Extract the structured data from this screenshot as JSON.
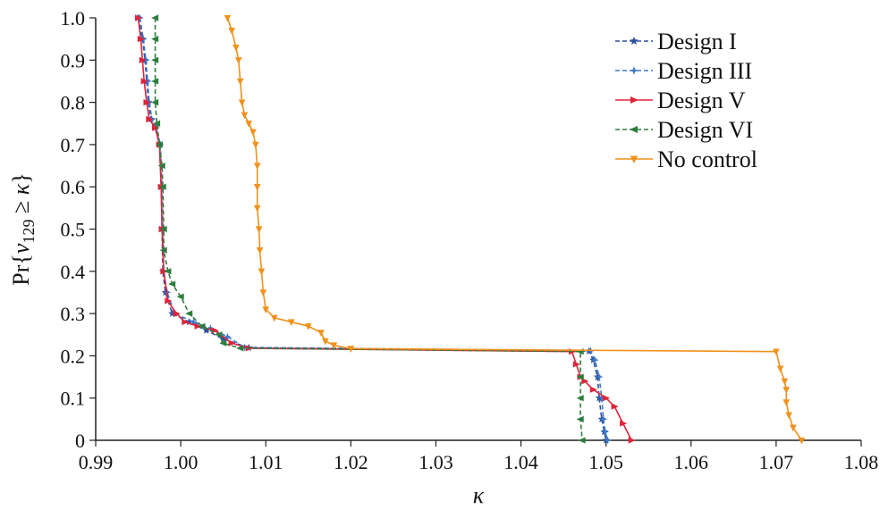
{
  "chart_data": {
    "type": "line",
    "xlabel": "κ",
    "ylabel": "Pr{v129 ≥ κ}",
    "ylabel_parts": {
      "pre": "Pr{",
      "var": "v",
      "sub": "129",
      "op": " ≥ ",
      "kappa": "κ",
      "post": "}"
    },
    "xlim": [
      0.99,
      1.08
    ],
    "ylim": [
      0,
      1.0
    ],
    "x_ticks": [
      0.99,
      1.0,
      1.01,
      1.02,
      1.03,
      1.04,
      1.05,
      1.06,
      1.07,
      1.08
    ],
    "x_tick_labels": [
      "0.99",
      "1.00",
      "1.01",
      "1.02",
      "1.03",
      "1.04",
      "1.05",
      "1.06",
      "1.07",
      "1.08"
    ],
    "y_ticks": [
      0,
      0.1,
      0.2,
      0.3,
      0.4,
      0.5,
      0.6,
      0.7,
      0.8,
      0.9,
      1.0
    ],
    "y_tick_labels": [
      "0",
      "0.1",
      "0.2",
      "0.3",
      "0.4",
      "0.5",
      "0.6",
      "0.7",
      "0.8",
      "0.9",
      "1.0"
    ],
    "grid": false,
    "legend_position": "top-right",
    "series": [
      {
        "name": "Design I",
        "color": "#2f4f9e",
        "marker": "star",
        "dashed": true,
        "points": [
          [
            0.995,
            1.0
          ],
          [
            0.9955,
            0.95
          ],
          [
            0.9958,
            0.9
          ],
          [
            0.996,
            0.85
          ],
          [
            0.9962,
            0.8
          ],
          [
            0.9965,
            0.76
          ],
          [
            0.997,
            0.74
          ],
          [
            0.9975,
            0.7
          ],
          [
            0.9977,
            0.6
          ],
          [
            0.9978,
            0.5
          ],
          [
            0.9979,
            0.4
          ],
          [
            0.9982,
            0.35
          ],
          [
            0.999,
            0.3
          ],
          [
            1.001,
            0.28
          ],
          [
            1.003,
            0.26
          ],
          [
            1.005,
            0.24
          ],
          [
            1.008,
            0.219
          ],
          [
            1.048,
            0.211
          ],
          [
            1.0485,
            0.19
          ],
          [
            1.049,
            0.15
          ],
          [
            1.0492,
            0.1
          ],
          [
            1.0495,
            0.05
          ],
          [
            1.0498,
            0.02
          ],
          [
            1.05,
            0.0
          ]
        ]
      },
      {
        "name": "Design III",
        "color": "#3a78c9",
        "marker": "diamond",
        "dashed": true,
        "points": [
          [
            0.9952,
            1.0
          ],
          [
            0.9956,
            0.95
          ],
          [
            0.9959,
            0.9
          ],
          [
            0.9961,
            0.85
          ],
          [
            0.9963,
            0.8
          ],
          [
            0.9966,
            0.76
          ],
          [
            0.9971,
            0.74
          ],
          [
            0.9976,
            0.7
          ],
          [
            0.9978,
            0.6
          ],
          [
            0.9979,
            0.5
          ],
          [
            0.998,
            0.4
          ],
          [
            0.9984,
            0.35
          ],
          [
            0.9993,
            0.3
          ],
          [
            1.0015,
            0.28
          ],
          [
            1.0035,
            0.265
          ],
          [
            1.0055,
            0.245
          ],
          [
            1.0075,
            0.22
          ],
          [
            1.0482,
            0.212
          ],
          [
            1.0487,
            0.19
          ],
          [
            1.0492,
            0.15
          ],
          [
            1.0495,
            0.1
          ],
          [
            1.0497,
            0.05
          ],
          [
            1.0499,
            0.02
          ],
          [
            1.0502,
            0.0
          ]
        ]
      },
      {
        "name": "Design V",
        "color": "#e0243a",
        "marker": "triangle-right",
        "dashed": false,
        "points": [
          [
            0.995,
            1.0
          ],
          [
            0.9953,
            0.95
          ],
          [
            0.9955,
            0.9
          ],
          [
            0.9957,
            0.85
          ],
          [
            0.996,
            0.8
          ],
          [
            0.9963,
            0.76
          ],
          [
            0.997,
            0.74
          ],
          [
            0.9975,
            0.7
          ],
          [
            0.9977,
            0.6
          ],
          [
            0.9978,
            0.5
          ],
          [
            0.998,
            0.4
          ],
          [
            0.9985,
            0.33
          ],
          [
            0.9995,
            0.3
          ],
          [
            1.0005,
            0.28
          ],
          [
            1.002,
            0.27
          ],
          [
            1.004,
            0.26
          ],
          [
            1.006,
            0.23
          ],
          [
            1.008,
            0.218
          ],
          [
            1.046,
            0.21
          ],
          [
            1.0465,
            0.18
          ],
          [
            1.047,
            0.15
          ],
          [
            1.0475,
            0.14
          ],
          [
            1.0485,
            0.12
          ],
          [
            1.05,
            0.1
          ],
          [
            1.051,
            0.08
          ],
          [
            1.052,
            0.04
          ],
          [
            1.053,
            0.0
          ]
        ]
      },
      {
        "name": "Design VI",
        "color": "#2e7d3e",
        "marker": "triangle-left",
        "dashed": true,
        "points": [
          [
            0.997,
            1.0
          ],
          [
            0.997,
            0.95
          ],
          [
            0.997,
            0.9
          ],
          [
            0.997,
            0.85
          ],
          [
            0.997,
            0.8
          ],
          [
            0.9972,
            0.75
          ],
          [
            0.9975,
            0.7
          ],
          [
            0.9978,
            0.65
          ],
          [
            0.9979,
            0.6
          ],
          [
            0.998,
            0.5
          ],
          [
            0.998,
            0.45
          ],
          [
            0.9985,
            0.4
          ],
          [
            0.999,
            0.37
          ],
          [
            1.0,
            0.34
          ],
          [
            1.001,
            0.3
          ],
          [
            1.0025,
            0.27
          ],
          [
            1.0045,
            0.25
          ],
          [
            1.005,
            0.23
          ],
          [
            1.007,
            0.218
          ],
          [
            1.047,
            0.21
          ],
          [
            1.047,
            0.15
          ],
          [
            1.047,
            0.1
          ],
          [
            1.047,
            0.05
          ],
          [
            1.0472,
            0.0
          ]
        ]
      },
      {
        "name": "No control",
        "color": "#f0921c",
        "marker": "triangle-down",
        "dashed": false,
        "points": [
          [
            1.0055,
            1.0
          ],
          [
            1.006,
            0.97
          ],
          [
            1.0065,
            0.93
          ],
          [
            1.0068,
            0.9
          ],
          [
            1.007,
            0.85
          ],
          [
            1.0072,
            0.8
          ],
          [
            1.0075,
            0.77
          ],
          [
            1.008,
            0.75
          ],
          [
            1.0085,
            0.73
          ],
          [
            1.0088,
            0.7
          ],
          [
            1.009,
            0.65
          ],
          [
            1.009,
            0.6
          ],
          [
            1.009,
            0.55
          ],
          [
            1.0092,
            0.5
          ],
          [
            1.0093,
            0.45
          ],
          [
            1.0095,
            0.4
          ],
          [
            1.0097,
            0.35
          ],
          [
            1.01,
            0.31
          ],
          [
            1.011,
            0.29
          ],
          [
            1.013,
            0.28
          ],
          [
            1.015,
            0.27
          ],
          [
            1.0165,
            0.255
          ],
          [
            1.017,
            0.235
          ],
          [
            1.018,
            0.225
          ],
          [
            1.02,
            0.217
          ],
          [
            1.07,
            0.21
          ],
          [
            1.0705,
            0.17
          ],
          [
            1.071,
            0.14
          ],
          [
            1.0712,
            0.12
          ],
          [
            1.0712,
            0.09
          ],
          [
            1.0715,
            0.06
          ],
          [
            1.072,
            0.03
          ],
          [
            1.073,
            0.0
          ]
        ]
      }
    ]
  }
}
